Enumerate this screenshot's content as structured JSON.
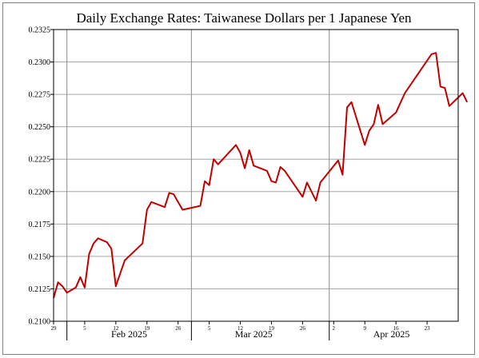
{
  "chart_data": {
    "type": "line",
    "title": "Daily Exchange Rates: Taiwanese Dollars per 1 Japanese Yen",
    "xlabel": "",
    "ylabel": "",
    "ylim": [
      0.21,
      0.2325
    ],
    "xlim": [
      "2025-01-29",
      "2025-04-30"
    ],
    "grid": true,
    "legend": "none",
    "y_ticks": [
      0.21,
      0.2125,
      0.215,
      0.2175,
      0.22,
      0.2225,
      0.225,
      0.2275,
      0.23,
      0.2325
    ],
    "y_tick_labels": [
      "0.2100",
      "0.2125",
      "0.2150",
      "0.2175",
      "0.2200",
      "0.2225",
      "0.2250",
      "0.2275",
      "0.2300",
      "0.2325"
    ],
    "x_minor_ticks": [
      {
        "date": "2025-01-29",
        "label": "29"
      },
      {
        "date": "2025-02-05",
        "label": "5"
      },
      {
        "date": "2025-02-12",
        "label": "12"
      },
      {
        "date": "2025-02-19",
        "label": "19"
      },
      {
        "date": "2025-02-26",
        "label": "26"
      },
      {
        "date": "2025-03-05",
        "label": "5"
      },
      {
        "date": "2025-03-12",
        "label": "12"
      },
      {
        "date": "2025-03-19",
        "label": "19"
      },
      {
        "date": "2025-03-26",
        "label": "26"
      },
      {
        "date": "2025-04-02",
        "label": "2"
      },
      {
        "date": "2025-04-09",
        "label": "9"
      },
      {
        "date": "2025-04-16",
        "label": "16"
      },
      {
        "date": "2025-04-23",
        "label": "23"
      }
    ],
    "x_month_boundaries": [
      "2025-02-01",
      "2025-03-01",
      "2025-04-01"
    ],
    "x_month_labels": [
      {
        "date": "2025-02-15",
        "label": "Feb 2025"
      },
      {
        "date": "2025-03-15",
        "label": "Mar 2025"
      },
      {
        "date": "2025-04-15",
        "label": "Apr 2025"
      }
    ],
    "series": [
      {
        "color": "#c00000",
        "points": [
          [
            "2025-01-29",
            0.2118
          ],
          [
            "2025-01-30",
            0.213
          ],
          [
            "2025-01-31",
            0.2127
          ],
          [
            "2025-02-01",
            0.2122
          ],
          [
            "2025-02-03",
            0.2126
          ],
          [
            "2025-02-04",
            0.2134
          ],
          [
            "2025-02-05",
            0.2126
          ],
          [
            "2025-02-06",
            0.2152
          ],
          [
            "2025-02-07",
            0.216
          ],
          [
            "2025-02-08",
            0.2164
          ],
          [
            "2025-02-10",
            0.2161
          ],
          [
            "2025-02-11",
            0.2156
          ],
          [
            "2025-02-12",
            0.2127
          ],
          [
            "2025-02-14",
            0.2147
          ],
          [
            "2025-02-18",
            0.216
          ],
          [
            "2025-02-19",
            0.2186
          ],
          [
            "2025-02-20",
            0.2192
          ],
          [
            "2025-02-23",
            0.2188
          ],
          [
            "2025-02-24",
            0.2199
          ],
          [
            "2025-02-25",
            0.2198
          ],
          [
            "2025-02-27",
            0.2186
          ],
          [
            "2025-03-03",
            0.2189
          ],
          [
            "2025-03-04",
            0.2208
          ],
          [
            "2025-03-05",
            0.2205
          ],
          [
            "2025-03-06",
            0.2225
          ],
          [
            "2025-03-07",
            0.2221
          ],
          [
            "2025-03-11",
            0.2236
          ],
          [
            "2025-03-12",
            0.223
          ],
          [
            "2025-03-13",
            0.2218
          ],
          [
            "2025-03-14",
            0.2232
          ],
          [
            "2025-03-15",
            0.222
          ],
          [
            "2025-03-18",
            0.2216
          ],
          [
            "2025-03-19",
            0.2208
          ],
          [
            "2025-03-20",
            0.2207
          ],
          [
            "2025-03-21",
            0.2219
          ],
          [
            "2025-03-22",
            0.2216
          ],
          [
            "2025-03-26",
            0.2196
          ],
          [
            "2025-03-27",
            0.2207
          ],
          [
            "2025-03-29",
            0.2193
          ],
          [
            "2025-03-30",
            0.2207
          ],
          [
            "2025-04-03",
            0.2224
          ],
          [
            "2025-04-04",
            0.2213
          ],
          [
            "2025-04-05",
            0.2265
          ],
          [
            "2025-04-06",
            0.2269
          ],
          [
            "2025-04-09",
            0.2236
          ],
          [
            "2025-04-10",
            0.2247
          ],
          [
            "2025-04-11",
            0.2252
          ],
          [
            "2025-04-12",
            0.2267
          ],
          [
            "2025-04-13",
            0.2252
          ],
          [
            "2025-04-16",
            0.2261
          ],
          [
            "2025-04-18",
            0.2276
          ],
          [
            "2025-04-19",
            0.2281
          ],
          [
            "2025-04-24",
            0.2306
          ],
          [
            "2025-04-25",
            0.2307
          ],
          [
            "2025-04-26",
            0.2281
          ],
          [
            "2025-04-27",
            0.228
          ],
          [
            "2025-04-28",
            0.2266
          ],
          [
            "2025-05-01",
            0.2276
          ],
          [
            "2025-05-02",
            0.2269
          ]
        ]
      }
    ]
  }
}
